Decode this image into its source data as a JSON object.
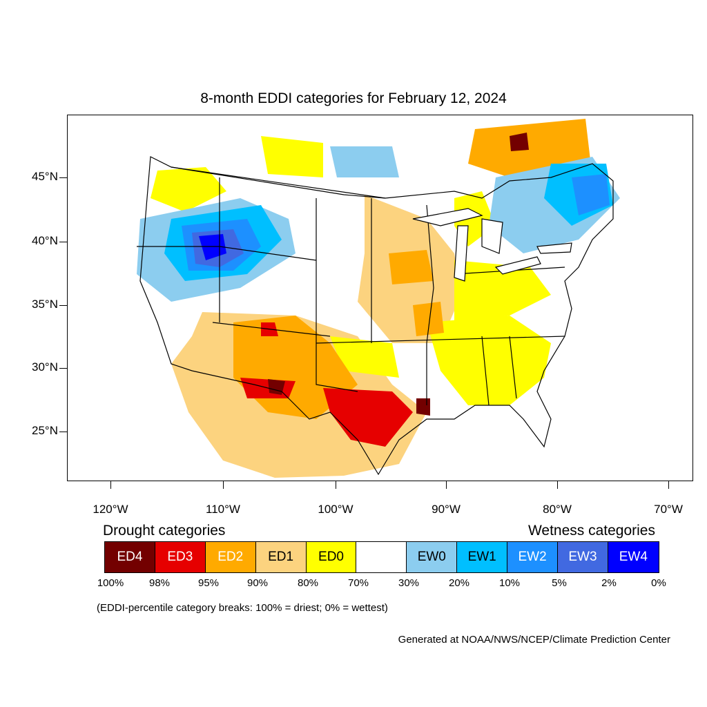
{
  "title": "8-month EDDI categories for February 12, 2024",
  "lat_labels": [
    "45°N",
    "40°N",
    "35°N",
    "30°N",
    "25°N"
  ],
  "lon_labels": [
    "120°W",
    "110°W",
    "100°W",
    "90°W",
    "80°W",
    "70°W"
  ],
  "legend": {
    "drought_heading": "Drought categories",
    "wetness_heading": "Wetness categories",
    "categories": [
      {
        "label": "ED4",
        "color": "#730000",
        "text_color": "#ffffff"
      },
      {
        "label": "ED3",
        "color": "#e60000",
        "text_color": "#ffffff"
      },
      {
        "label": "ED2",
        "color": "#ffaa00",
        "text_color": "#ffffff"
      },
      {
        "label": "ED1",
        "color": "#fcd37f",
        "text_color": "#000000"
      },
      {
        "label": "ED0",
        "color": "#ffff00",
        "text_color": "#000000"
      },
      {
        "label": "",
        "color": "#ffffff",
        "text_color": "#000000"
      },
      {
        "label": "EW0",
        "color": "#8ccdef",
        "text_color": "#000000"
      },
      {
        "label": "EW1",
        "color": "#00bfff",
        "text_color": "#000000"
      },
      {
        "label": "EW2",
        "color": "#1d90ff",
        "text_color": "#ffffff"
      },
      {
        "label": "EW3",
        "color": "#4169e1",
        "text_color": "#ffffff"
      },
      {
        "label": "EW4",
        "color": "#0000ff",
        "text_color": "#ffffff"
      }
    ],
    "breaks": [
      "100%",
      "98%",
      "95%",
      "90%",
      "80%",
      "70%",
      "30%",
      "20%",
      "10%",
      "5%",
      "2%",
      "0%"
    ]
  },
  "note": "(EDDI-percentile category breaks: 100% = driest; 0% = wettest)",
  "credit": "Generated at NOAA/NWS/NCEP/Climate Prediction Center"
}
